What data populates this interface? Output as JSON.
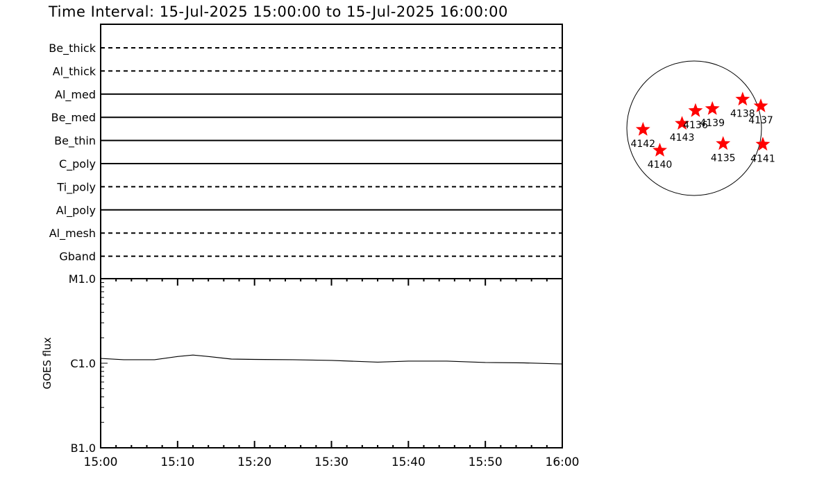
{
  "title": "Time Interval: 15-Jul-2025 15:00:00 to 15-Jul-2025 16:00:00",
  "chart_data": [
    {
      "type": "table",
      "description_labels": [
        "Be_thick",
        "Al_thick",
        "Al_med",
        "Be_med",
        "Be_thin",
        "C_poly",
        "Ti_poly",
        "Al_poly",
        "Al_mesh",
        "Gband"
      ],
      "rows": [
        {
          "label": "Be_thick",
          "style": "dashed"
        },
        {
          "label": "Al_thick",
          "style": "dashed"
        },
        {
          "label": "Al_med",
          "style": "solid"
        },
        {
          "label": "Be_med",
          "style": "solid"
        },
        {
          "label": "Be_thin",
          "style": "solid"
        },
        {
          "label": "C_poly",
          "style": "solid"
        },
        {
          "label": "Ti_poly",
          "style": "dashed"
        },
        {
          "label": "Al_poly",
          "style": "solid"
        },
        {
          "label": "Al_mesh",
          "style": "dashed"
        },
        {
          "label": "Gband",
          "style": "dashed"
        }
      ]
    },
    {
      "type": "line",
      "ylabel": "GOES flux",
      "yscale": "log",
      "ylim": [
        1e-06,
        0.0001
      ],
      "ytick_labels": [
        "B1.0",
        "C1.0",
        "M1.0"
      ],
      "xlim": [
        "15:00",
        "16:00"
      ],
      "xtick_labels": [
        "15:00",
        "15:10",
        "15:20",
        "15:30",
        "15:40",
        "15:50",
        "16:00"
      ],
      "color": "#000000",
      "x": [
        "15:00",
        "15:03",
        "15:07",
        "15:10",
        "15:12",
        "15:14",
        "15:17",
        "15:20",
        "15:25",
        "15:30",
        "15:36",
        "15:40",
        "15:45",
        "15:50",
        "15:55",
        "16:00"
      ],
      "y": [
        1.14e-05,
        1.1e-05,
        1.1e-05,
        1.2e-05,
        1.25e-05,
        1.2e-05,
        1.12e-05,
        1.11e-05,
        1.1e-05,
        1.08e-05,
        1.03e-05,
        1.06e-05,
        1.06e-05,
        1.02e-05,
        1.01e-05,
        9.8e-06
      ]
    },
    {
      "type": "scatter",
      "marker": "star",
      "color": "#ff0000",
      "units": "solar radii",
      "points": [
        {
          "label": "4142",
          "x": -0.76,
          "y": -0.02
        },
        {
          "label": "4140",
          "x": -0.51,
          "y": -0.33
        },
        {
          "label": "4143",
          "x": -0.18,
          "y": 0.07
        },
        {
          "label": "4136",
          "x": 0.02,
          "y": 0.26
        },
        {
          "label": "4139",
          "x": 0.27,
          "y": 0.29
        },
        {
          "label": "4138",
          "x": 0.72,
          "y": 0.43
        },
        {
          "label": "4137",
          "x": 0.99,
          "y": 0.33
        },
        {
          "label": "4135",
          "x": 0.43,
          "y": -0.23
        },
        {
          "label": "4141",
          "x": 1.02,
          "y": -0.24
        }
      ]
    }
  ]
}
